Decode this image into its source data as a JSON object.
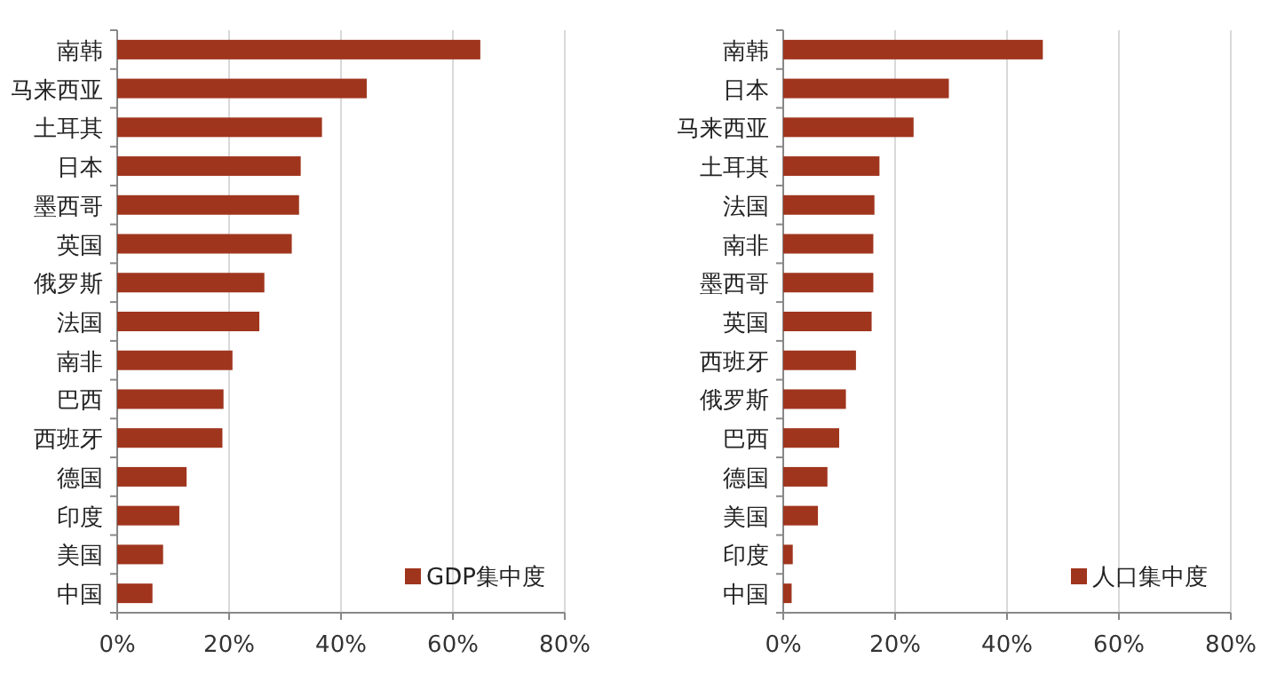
{
  "chart_data": [
    {
      "type": "bar",
      "orientation": "horizontal",
      "categories": [
        "南韩",
        "马来西亚",
        "土耳其",
        "日本",
        "墨西哥",
        "英国",
        "俄罗斯",
        "法国",
        "南非",
        "巴西",
        "西班牙",
        "德国",
        "印度",
        "美国",
        "中国"
      ],
      "series": [
        {
          "name": "GDP集中度",
          "color": "#a0351e",
          "values": [
            64.9,
            44.6,
            36.6,
            32.8,
            32.5,
            31.2,
            26.3,
            25.4,
            20.6,
            19.0,
            18.8,
            12.4,
            11.1,
            8.2,
            6.3
          ]
        }
      ],
      "xlim": [
        0,
        80
      ],
      "xticks": [
        {
          "value": 0,
          "label": "0%"
        },
        {
          "value": 20,
          "label": "20%"
        },
        {
          "value": 40,
          "label": "40%"
        },
        {
          "value": 60,
          "label": "60%"
        },
        {
          "value": 80,
          "label": "80%"
        }
      ],
      "grid": "x",
      "legend": "bottom right"
    },
    {
      "type": "bar",
      "orientation": "horizontal",
      "categories": [
        "南韩",
        "日本",
        "马来西亚",
        "土耳其",
        "法国",
        "南非",
        "墨西哥",
        "英国",
        "西班牙",
        "俄罗斯",
        "巴西",
        "德国",
        "美国",
        "印度",
        "中国"
      ],
      "series": [
        {
          "name": "人口集中度",
          "color": "#a0351e",
          "values": [
            46.4,
            29.6,
            23.3,
            17.2,
            16.3,
            16.1,
            16.1,
            15.8,
            13.0,
            11.2,
            10.0,
            7.9,
            6.2,
            1.7,
            1.5
          ]
        }
      ],
      "xlim": [
        0,
        80
      ],
      "xticks": [
        {
          "value": 0,
          "label": "0%"
        },
        {
          "value": 20,
          "label": "20%"
        },
        {
          "value": 40,
          "label": "40%"
        },
        {
          "value": 60,
          "label": "60%"
        },
        {
          "value": 80,
          "label": "80%"
        }
      ],
      "grid": "x",
      "legend": "bottom right"
    }
  ]
}
